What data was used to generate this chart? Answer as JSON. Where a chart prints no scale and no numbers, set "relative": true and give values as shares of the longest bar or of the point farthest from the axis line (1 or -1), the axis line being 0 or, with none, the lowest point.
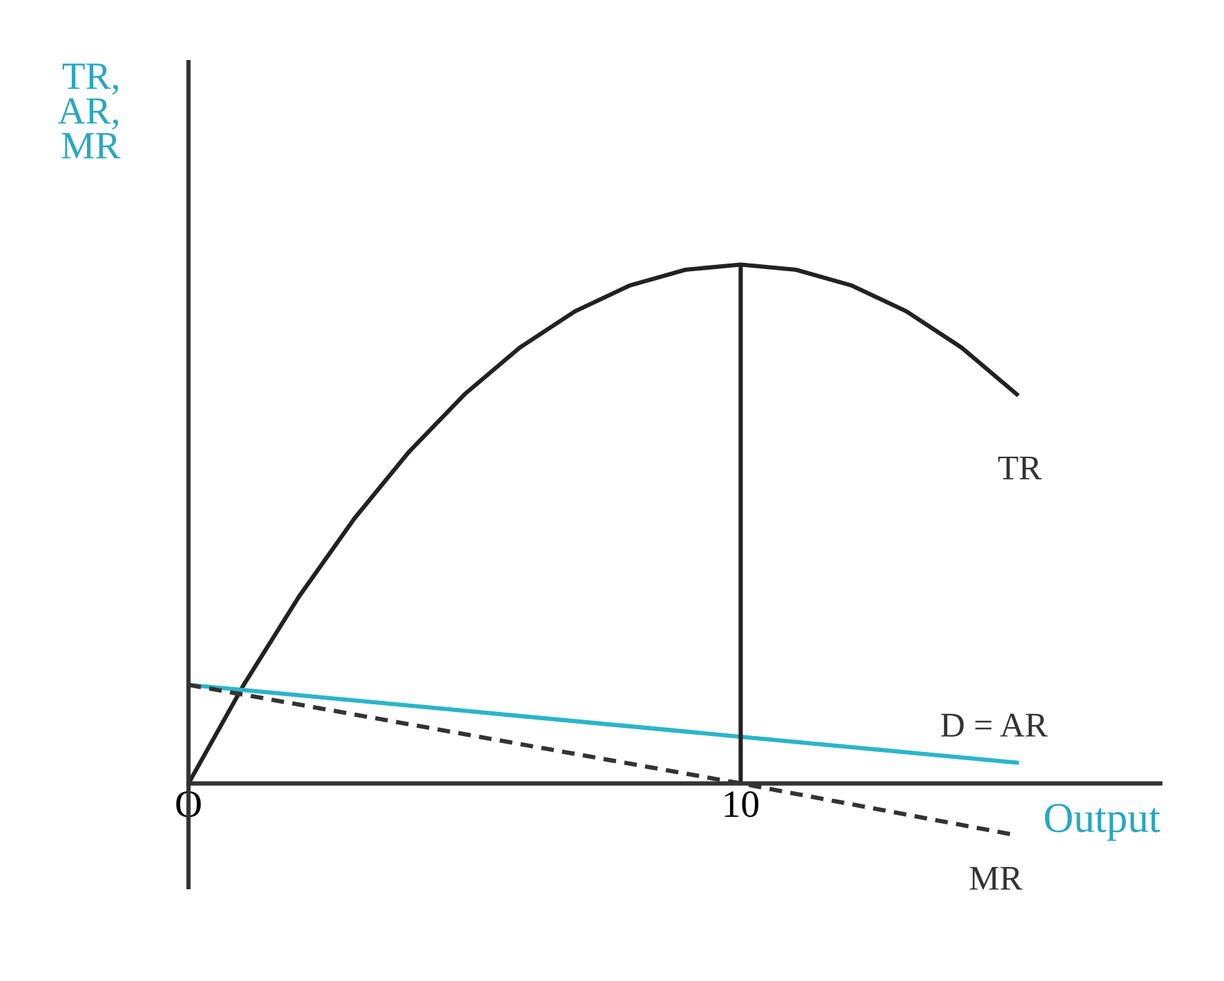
{
  "chart_data": {
    "type": "line",
    "relative": true,
    "xlabel": "Output",
    "ylabel": "TR,\nAR,\nMR",
    "categories": [
      "O",
      null,
      null,
      null,
      null,
      null,
      null,
      null,
      null,
      null,
      "10",
      null,
      null,
      null,
      null,
      null,
      null,
      null
    ],
    "tick_labels": "x",
    "grid": false,
    "legend": false,
    "marker": "none",
    "series": [
      {
        "name": "TR",
        "color": "#222222",
        "line_style": "solid",
        "values": [
          0,
          0.19,
          0.36,
          0.51,
          0.64,
          0.75,
          0.84,
          0.91,
          0.96,
          0.99,
          1,
          0.99,
          0.96,
          0.91,
          0.84,
          0.75,
          null,
          null
        ]
      },
      {
        "name": "D = AR",
        "color": "#2bb5c8",
        "line_style": "solid",
        "values": [
          0.19,
          0.18,
          0.17,
          0.16,
          0.15,
          0.14,
          0.13,
          0.12,
          0.11,
          0.1,
          0.09,
          0.08,
          0.07,
          0.06,
          0.05,
          0.04,
          null,
          null
        ]
      },
      {
        "name": "MR",
        "color": "#333333",
        "line_style": "dashed",
        "values": [
          0.19,
          0.171,
          0.152,
          0.133,
          0.114,
          0.095,
          0.076,
          0.057,
          0.038,
          0.019,
          0,
          -0.02,
          -0.04,
          -0.06,
          -0.08,
          -0.1,
          null,
          null
        ]
      }
    ],
    "ref_lines": [
      {
        "axis": "x",
        "value": "10",
        "color": "#222222",
        "line_style": "solid"
      }
    ]
  }
}
